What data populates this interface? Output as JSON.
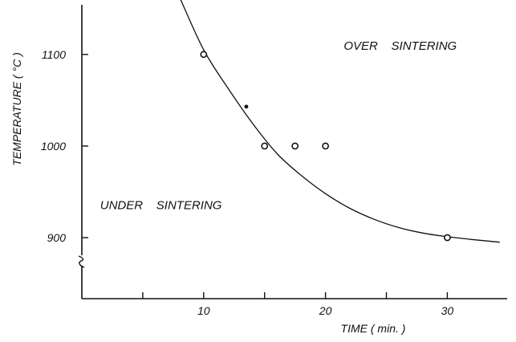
{
  "chart_data": {
    "type": "scatter",
    "title": "",
    "xlabel": "TIME ( min. )",
    "ylabel": "TEMPERATURE ( °C )",
    "xlim": [
      0,
      35
    ],
    "ylim": [
      850,
      1160
    ],
    "x_ticks": [
      10,
      20,
      30
    ],
    "x_minor_ticks": [
      5,
      15,
      25
    ],
    "y_ticks": [
      900,
      1000,
      1100
    ],
    "x_tick_labels": [
      "10",
      "20",
      "30"
    ],
    "y_tick_labels": [
      "900",
      "1000",
      "1100"
    ],
    "y_axis_break": true,
    "grid": false,
    "series": [
      {
        "marker": "open-circle",
        "points": [
          {
            "x": 10,
            "y": 1100
          },
          {
            "x": 15,
            "y": 1000
          },
          {
            "x": 17.5,
            "y": 1000
          },
          {
            "x": 20,
            "y": 1000
          },
          {
            "x": 30,
            "y": 900
          }
        ]
      },
      {
        "marker": "filled-dot",
        "points": [
          {
            "x": 13.5,
            "y": 1043
          }
        ]
      }
    ],
    "fit_curve": [
      {
        "x": 8.1,
        "y": 1160
      },
      {
        "x": 10,
        "y": 1105
      },
      {
        "x": 12,
        "y": 1063
      },
      {
        "x": 14,
        "y": 1025
      },
      {
        "x": 16,
        "y": 992
      },
      {
        "x": 18,
        "y": 968
      },
      {
        "x": 20,
        "y": 948
      },
      {
        "x": 22,
        "y": 932
      },
      {
        "x": 24,
        "y": 920
      },
      {
        "x": 26,
        "y": 911
      },
      {
        "x": 28,
        "y": 905
      },
      {
        "x": 30,
        "y": 901
      },
      {
        "x": 32,
        "y": 898
      },
      {
        "x": 34.3,
        "y": 895
      }
    ],
    "annotations": [
      {
        "id": "over",
        "text": "OVER    SINTERING",
        "x": 21.5,
        "y": 1105
      },
      {
        "id": "under",
        "text": "UNDER    SINTERING",
        "x": 1.5,
        "y": 931
      }
    ]
  }
}
